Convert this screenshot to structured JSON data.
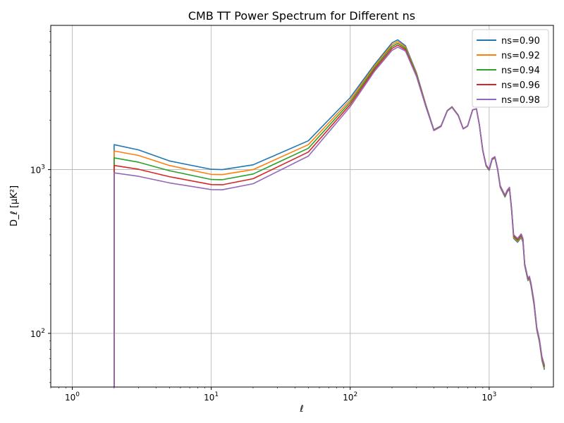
{
  "chart_data": {
    "type": "line",
    "title": "CMB TT Power Spectrum for Different ns",
    "xlabel": "ℓ",
    "ylabel": "D_ℓ [μK²]",
    "xscale": "log",
    "yscale": "log",
    "xlim": [
      0.7,
      2900
    ],
    "ylim": [
      47,
      7600
    ],
    "grid": true,
    "legend_position": "top-right",
    "x_ticks": [
      {
        "value": 1,
        "base": "10",
        "exp": "0"
      },
      {
        "value": 10,
        "base": "10",
        "exp": "1"
      },
      {
        "value": 100,
        "base": "10",
        "exp": "2"
      },
      {
        "value": 1000,
        "base": "10",
        "exp": "3"
      }
    ],
    "y_ticks": [
      {
        "value": 100,
        "base": "10",
        "exp": "2"
      },
      {
        "value": 1000,
        "base": "10",
        "exp": "3"
      }
    ],
    "x": [
      2,
      3,
      5,
      10,
      12,
      20,
      50,
      100,
      150,
      200,
      220,
      250,
      300,
      350,
      400,
      450,
      500,
      540,
      600,
      650,
      700,
      760,
      810,
      850,
      900,
      950,
      1000,
      1050,
      1100,
      1150,
      1200,
      1300,
      1350,
      1400,
      1450,
      1500,
      1600,
      1700,
      1750,
      1800,
      1900,
      1950,
      2000,
      2100,
      2200,
      2300,
      2400,
      2500
    ],
    "series": [
      {
        "name": "ns=0.90",
        "color": "#1f77b4",
        "values": [
          1420,
          1320,
          1130,
          1005,
          1000,
          1070,
          1500,
          2750,
          4400,
          5950,
          6200,
          5700,
          3900,
          2500,
          1750,
          1850,
          2300,
          2420,
          2150,
          1780,
          1850,
          2320,
          2350,
          1880,
          1300,
          1050,
          990,
          1150,
          1180,
          1000,
          780,
          680,
          730,
          760,
          560,
          380,
          360,
          385,
          360,
          260,
          210,
          215,
          195,
          150,
          105,
          88,
          68,
          60
        ]
      },
      {
        "name": "ns=0.92",
        "color": "#ff7f0e",
        "values": [
          1300,
          1220,
          1060,
          935,
          932,
          1000,
          1420,
          2660,
          4300,
          5800,
          6050,
          5600,
          3850,
          2480,
          1745,
          1845,
          2295,
          2415,
          2145,
          1778,
          1848,
          2318,
          2350,
          1882,
          1305,
          1055,
          995,
          1155,
          1185,
          1005,
          785,
          685,
          735,
          765,
          565,
          385,
          365,
          390,
          365,
          262,
          212,
          217,
          197,
          152,
          106,
          89,
          69,
          61
        ]
      },
      {
        "name": "ns=0.94",
        "color": "#2ca02c",
        "values": [
          1180,
          1110,
          985,
          870,
          868,
          940,
          1350,
          2580,
          4200,
          5650,
          5900,
          5500,
          3800,
          2460,
          1740,
          1840,
          2290,
          2410,
          2140,
          1776,
          1846,
          2316,
          2350,
          1884,
          1310,
          1060,
          1000,
          1160,
          1190,
          1010,
          790,
          690,
          740,
          770,
          570,
          390,
          370,
          395,
          370,
          264,
          214,
          219,
          199,
          154,
          107,
          90,
          70,
          62
        ]
      },
      {
        "name": "ns=0.96",
        "color": "#d62728",
        "values": [
          1060,
          1005,
          905,
          810,
          808,
          880,
          1280,
          2500,
          4100,
          5500,
          5750,
          5400,
          3750,
          2440,
          1735,
          1835,
          2285,
          2405,
          2135,
          1774,
          1844,
          2314,
          2350,
          1886,
          1315,
          1065,
          1005,
          1165,
          1195,
          1015,
          795,
          695,
          745,
          775,
          575,
          395,
          375,
          400,
          375,
          266,
          216,
          221,
          201,
          156,
          108,
          91,
          71,
          63
        ]
      },
      {
        "name": "ns=0.98",
        "color": "#9467bd",
        "values": [
          955,
          910,
          830,
          755,
          753,
          820,
          1210,
          2420,
          4000,
          5350,
          5600,
          5300,
          3700,
          2420,
          1730,
          1830,
          2280,
          2400,
          2130,
          1772,
          1842,
          2312,
          2350,
          1888,
          1320,
          1070,
          1010,
          1170,
          1200,
          1020,
          800,
          700,
          750,
          780,
          580,
          400,
          380,
          405,
          380,
          268,
          218,
          223,
          203,
          158,
          109,
          92,
          72,
          64
        ]
      }
    ]
  }
}
